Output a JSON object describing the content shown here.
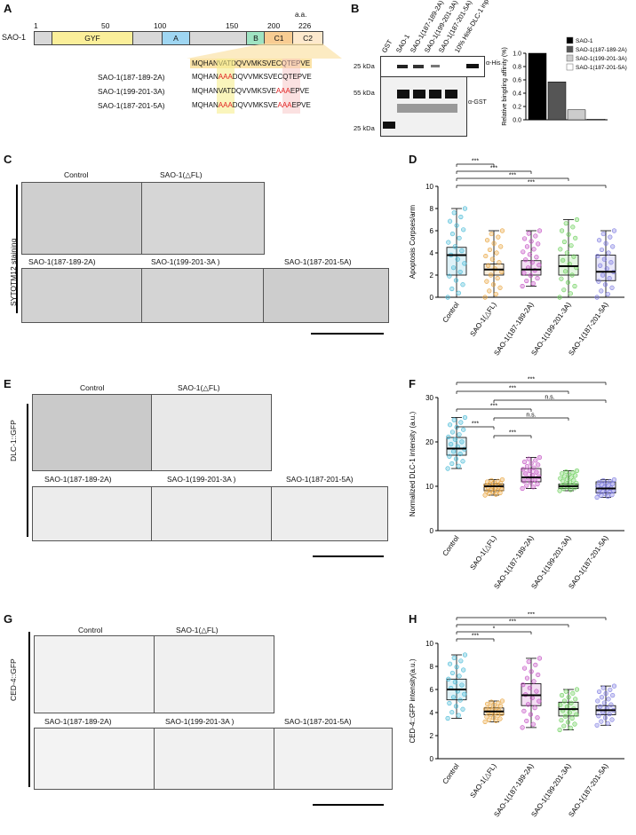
{
  "panels": {
    "A": "A",
    "B": "B",
    "C": "C",
    "D": "D",
    "E": "E",
    "F": "F",
    "G": "G",
    "H": "H"
  },
  "panelA": {
    "protein": "SAO-1",
    "aa_label": "a.a.",
    "ticks": [
      "1",
      "50",
      "100",
      "150",
      "200",
      "226"
    ],
    "domains": [
      {
        "label": "GYF",
        "color": "#fbef9a"
      },
      {
        "label": "A",
        "color": "#9fd6f2"
      },
      {
        "label": "B",
        "color": "#9fe3c2"
      },
      {
        "label": "C1",
        "color": "#f8cc92"
      },
      {
        "label": "C2",
        "color": "#fde9cd"
      }
    ],
    "wt_seq": "MQHANVATDQVVMKSVECQTEPVE",
    "rows": [
      {
        "name": "SAO-1(187-189-2A)",
        "p1": "MQHAN",
        "m1": "AAA",
        "p2": "DQVVMKSVE",
        "m2": "",
        "p3": "CQTE",
        "p4": "PVE",
        "m1red": true,
        "m2red": false
      },
      {
        "name": "SAO-1(199-201-3A)",
        "p1": "MQHAN",
        "m1": "VAT",
        "p2": "DQVVMKSVE",
        "m2": "AAA",
        "p3": "",
        "p4": "EPVE",
        "m1red": false,
        "m2red": true
      },
      {
        "name": "SAO-1(187-201-5A)",
        "p1": "MQHAN",
        "m1": "AAA",
        "p2": "DQVVMKSVE",
        "m2": "AAA",
        "p3": "",
        "p4": "EPVE",
        "m1red": true,
        "m2red": true
      }
    ]
  },
  "panelB": {
    "lanes": [
      "GST",
      "SAO-1",
      "SAO-1(187-189-2A)",
      "SAO-1(199-201-3A)",
      "SAO-1(187-201-5A)",
      "10% His6-DLC-1 input"
    ],
    "markers": [
      "25 kDa",
      "55 kDa",
      "25 kDa"
    ],
    "antibodies": [
      "α-His",
      "α-GST"
    ],
    "chart_data": {
      "type": "bar",
      "ylabel": "Relative bingding affinity (%)",
      "ylim": [
        0,
        1.0
      ],
      "yticks": [
        "0.0",
        "0.2",
        "0.4",
        "0.6",
        "0.8",
        "1.0"
      ],
      "categories": [
        "SAO-1",
        "SAO-1(187-189-2A)",
        "SAO-1(199-201-3A)",
        "SAO-1(187-201-5A)"
      ],
      "values": [
        1.0,
        0.57,
        0.15,
        0.01
      ],
      "colors": [
        "#000000",
        "#555555",
        "#cccccc",
        "#ffffff"
      ]
    }
  },
  "panelC": {
    "side_label": "SYTOTM12 staining",
    "top": [
      "Control",
      "SAO-1(△FL)"
    ],
    "bottom": [
      "SAO-1(187-189-2A)",
      "SAO-1(199-201-3A )",
      "SAO-1(187-201-5A)"
    ]
  },
  "panelE": {
    "side_label": "DLC-1::GFP",
    "top": [
      "Control",
      "SAO-1(△FL)"
    ],
    "bottom": [
      "SAO-1(187-189-2A)",
      "SAO-1(199-201-3A )",
      "SAO-1(187-201-5A)"
    ]
  },
  "panelG": {
    "side_label": "CED-4::GFP",
    "top": [
      "Control",
      "SAO-1(△FL)"
    ],
    "bottom": [
      "SAO-1(187-189-2A)",
      "SAO-1(199-201-3A )",
      "SAO-1(187-201-5A)"
    ]
  },
  "boxplots": {
    "categories": [
      "Control",
      "SAO-1(△FL)",
      "SAO-1(187-189-2A)",
      "SAO-1(199-201-3A)",
      "SAO-1(187-201-5A)"
    ],
    "colors": [
      "#47b9d6",
      "#e8a33c",
      "#c24fc2",
      "#6bcf5a",
      "#7d7be0"
    ],
    "D": {
      "ylabel": "Apoptosis Corpses/arm",
      "ylim": [
        0,
        10
      ],
      "yticks": [
        "0",
        "2",
        "4",
        "6",
        "8",
        "10"
      ],
      "stats": [
        {
          "min": 0,
          "q1": 2,
          "med": 3.8,
          "q3": 4.5,
          "max": 8
        },
        {
          "min": 0,
          "q1": 2,
          "med": 2.5,
          "q3": 3,
          "max": 6
        },
        {
          "min": 1,
          "q1": 2,
          "med": 2.5,
          "q3": 3.3,
          "max": 6
        },
        {
          "min": 0,
          "q1": 2,
          "med": 2.8,
          "q3": 3.8,
          "max": 7
        },
        {
          "min": 0,
          "q1": 1.5,
          "med": 2.3,
          "q3": 3.8,
          "max": 6
        }
      ],
      "sig": [
        {
          "label": "***",
          "to": 1
        },
        {
          "label": "***",
          "to": 2
        },
        {
          "label": "***",
          "to": 3
        },
        {
          "label": "***",
          "to": 4
        }
      ]
    },
    "F": {
      "ylabel": "Normalized DLC-1 intensity (a.u.)",
      "ylim": [
        0,
        30
      ],
      "yticks": [
        "0",
        "10",
        "20",
        "30"
      ],
      "stats": [
        {
          "min": 14,
          "q1": 17,
          "med": 18.5,
          "q3": 21,
          "max": 25.5
        },
        {
          "min": 8,
          "q1": 9,
          "med": 10,
          "q3": 10.5,
          "max": 11.5
        },
        {
          "min": 9.5,
          "q1": 11,
          "med": 12,
          "q3": 14,
          "max": 16.5
        },
        {
          "min": 9,
          "q1": 9.5,
          "med": 10,
          "q3": 10.5,
          "max": 13.5
        },
        {
          "min": 7.5,
          "q1": 8.5,
          "med": 9.5,
          "q3": 11,
          "max": 11.5
        }
      ],
      "sig": [
        {
          "label": "***",
          "from": 0,
          "to": 4
        },
        {
          "label": "***",
          "from": 0,
          "to": 3
        },
        {
          "label": "n.s.",
          "from": 1,
          "to": 4
        },
        {
          "label": "***",
          "from": 0,
          "to": 2
        },
        {
          "label": "n.s.",
          "from": 1,
          "to": 3
        },
        {
          "label": "***",
          "from": 0,
          "to": 1
        },
        {
          "label": "***",
          "from": 1,
          "to": 2
        }
      ]
    },
    "H": {
      "ylabel": "CED-4::GFP intensity(a.u.)",
      "ylim": [
        0,
        10
      ],
      "yticks": [
        "0",
        "2",
        "4",
        "6",
        "8",
        "10"
      ],
      "stats": [
        {
          "min": 3.5,
          "q1": 5.1,
          "med": 6.0,
          "q3": 6.9,
          "max": 9.0
        },
        {
          "min": 3.2,
          "q1": 3.8,
          "med": 4.1,
          "q3": 4.4,
          "max": 5.0
        },
        {
          "min": 2.7,
          "q1": 4.6,
          "med": 5.5,
          "q3": 6.5,
          "max": 8.7
        },
        {
          "min": 2.5,
          "q1": 3.7,
          "med": 4.3,
          "q3": 4.9,
          "max": 6.0
        },
        {
          "min": 2.9,
          "q1": 3.8,
          "med": 4.2,
          "q3": 4.6,
          "max": 6.3
        }
      ],
      "sig": [
        {
          "label": "***",
          "to": 4
        },
        {
          "label": "***",
          "to": 3
        },
        {
          "label": "*",
          "to": 2
        },
        {
          "label": "***",
          "to": 1
        }
      ]
    }
  }
}
